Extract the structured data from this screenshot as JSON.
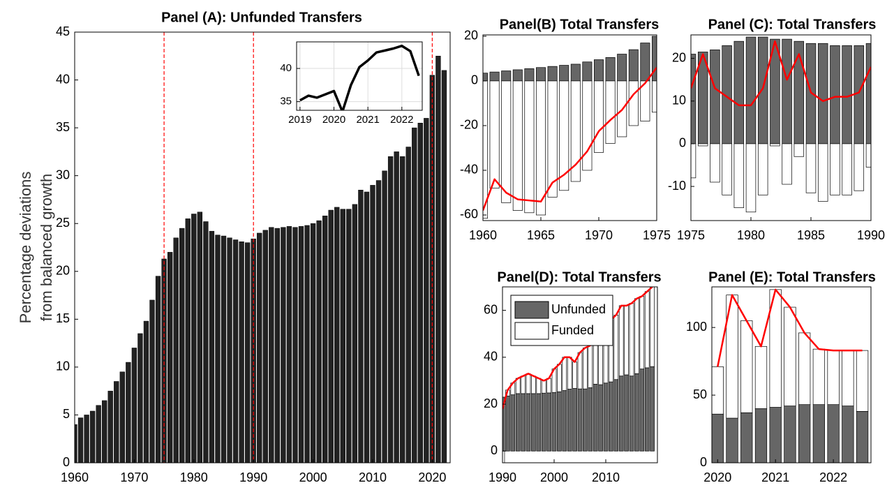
{
  "chart_data": [
    {
      "type": "bar",
      "title": "Panel (A): Unfunded Transfers",
      "ylabel": [
        "Percentage deviations",
        "from balanced growth"
      ],
      "x": [
        1960,
        1961,
        1962,
        1963,
        1964,
        1965,
        1966,
        1967,
        1968,
        1969,
        1970,
        1971,
        1972,
        1973,
        1974,
        1975,
        1976,
        1977,
        1978,
        1979,
        1980,
        1981,
        1982,
        1983,
        1984,
        1985,
        1986,
        1987,
        1988,
        1989,
        1990,
        1991,
        1992,
        1993,
        1994,
        1995,
        1996,
        1997,
        1998,
        1999,
        2000,
        2001,
        2002,
        2003,
        2004,
        2005,
        2006,
        2007,
        2008,
        2009,
        2010,
        2011,
        2012,
        2013,
        2014,
        2015,
        2016,
        2017,
        2018,
        2019,
        2020,
        2021,
        2022
      ],
      "values": [
        4,
        4.7,
        5,
        5.4,
        6,
        6.5,
        7.5,
        8.5,
        9.5,
        10.5,
        12,
        13.5,
        14.8,
        17,
        19.5,
        21.3,
        22,
        23.5,
        24.5,
        25.5,
        26,
        26.2,
        25.2,
        24.2,
        23.8,
        23.7,
        23.5,
        23.3,
        23.1,
        23,
        23.4,
        24,
        24.3,
        24.6,
        24.5,
        24.6,
        24.7,
        24.6,
        24.7,
        24.8,
        25,
        25.3,
        25.8,
        26.4,
        26.7,
        26.5,
        26.5,
        27,
        28.5,
        28.3,
        29,
        29.5,
        30.5,
        32,
        32.5,
        32,
        33,
        35,
        35.5,
        36,
        40.5,
        42.5,
        41
      ],
      "color": "#222222",
      "vlines": [
        1975,
        1990,
        2020
      ],
      "vline_color": "#ff0000",
      "xlim": [
        1960,
        2023
      ],
      "xticks": [
        1960,
        1970,
        1980,
        1990,
        2000,
        2010,
        2020
      ],
      "ylim": [
        0,
        45
      ],
      "yticks": [
        0,
        5,
        10,
        15,
        20,
        25,
        30,
        35,
        40,
        45
      ]
    },
    {
      "type": "line",
      "x": [
        2019,
        2019.25,
        2019.5,
        2019.75,
        2020,
        2020.25,
        2020.5,
        2020.75,
        2021,
        2021.25,
        2021.5,
        2021.75,
        2022,
        2022.25,
        2022.5
      ],
      "series": [
        {
          "color": "#000000",
          "values": [
            35.2,
            35.9,
            35.6,
            36.1,
            36.6,
            33.5,
            37.5,
            40.2,
            41.2,
            42.4,
            42.7,
            43.0,
            43.4,
            42.6,
            38.9
          ]
        }
      ],
      "grid": true,
      "xlim": [
        2018.9,
        2022.6
      ],
      "xticks": [
        2019,
        2020,
        2021,
        2022
      ],
      "ylim": [
        33.7,
        44
      ],
      "yticks": [
        35,
        40
      ]
    },
    {
      "type": "stacked_bar",
      "title": "Panel(B) Total Transfers",
      "x": [
        1960,
        1961,
        1962,
        1963,
        1964,
        1965,
        1966,
        1967,
        1968,
        1969,
        1970,
        1971,
        1972,
        1973,
        1974,
        1975
      ],
      "series": [
        {
          "color": "#666666",
          "kind": "bar",
          "values": [
            3.5,
            4,
            4.5,
            5,
            5.5,
            6,
            6.5,
            7,
            7.5,
            8.5,
            9.5,
            10.5,
            12,
            14,
            17,
            20
          ]
        },
        {
          "color": "#ffffff",
          "kind": "bar",
          "values": [
            -61.5,
            -48,
            -54.5,
            -58,
            -59,
            -60,
            -52,
            -49,
            -45,
            -40,
            -32,
            -28,
            -25,
            -20,
            -18,
            -14
          ]
        },
        {
          "color": "#ff0000",
          "kind": "line",
          "values": [
            -58,
            -44,
            -50,
            -53,
            -53.5,
            -54,
            -45.5,
            -42,
            -37.5,
            -31.5,
            -22.5,
            -17.5,
            -13,
            -6,
            -1,
            6
          ]
        }
      ],
      "xlim": [
        1960,
        1975
      ],
      "xticks": [
        1960,
        1965,
        1970,
        1975
      ],
      "ylim": [
        -62.5,
        20.6
      ],
      "yticks": [
        -60,
        -40,
        -20,
        0,
        20
      ]
    },
    {
      "type": "stacked_bar",
      "title": "Panel (C): Total Transfers",
      "x": [
        1975,
        1976,
        1977,
        1978,
        1979,
        1980,
        1981,
        1982,
        1983,
        1984,
        1985,
        1986,
        1987,
        1988,
        1989,
        1990
      ],
      "series": [
        {
          "color": "#666666",
          "kind": "bar",
          "values": [
            21,
            21.5,
            22,
            23,
            24,
            25,
            25,
            24.5,
            24.5,
            24,
            23.5,
            23.5,
            23,
            23,
            23,
            23.5
          ]
        },
        {
          "color": "#ffffff",
          "kind": "bar",
          "values": [
            -8,
            -0.5,
            -9,
            -12,
            -15,
            -16,
            -12,
            -0.5,
            -9.5,
            -3,
            -11.5,
            -13.5,
            -12,
            -12,
            -11,
            -5.5
          ]
        },
        {
          "color": "#ff0000",
          "kind": "line",
          "values": [
            13,
            21,
            13,
            11,
            9,
            9,
            13,
            24,
            15,
            21,
            12,
            10,
            11,
            11,
            12,
            18
          ]
        }
      ],
      "xlim": [
        1975,
        1990
      ],
      "xticks": [
        1975,
        1980,
        1985,
        1990
      ],
      "ylim": [
        -18,
        25.5
      ],
      "yticks": [
        -10,
        0,
        10,
        20
      ]
    },
    {
      "type": "stacked_bar",
      "title": "Panel(D): Total Transfers",
      "legend": "northwest",
      "x": [
        1990,
        1991,
        1992,
        1993,
        1994,
        1995,
        1996,
        1997,
        1998,
        1999,
        2000,
        2001,
        2002,
        2003,
        2004,
        2005,
        2006,
        2007,
        2008,
        2009,
        2010,
        2011,
        2012,
        2013,
        2014,
        2015,
        2016,
        2017,
        2018,
        2019
      ],
      "series": [
        {
          "name": "Unfunded",
          "color": "#666666",
          "kind": "bar",
          "values": [
            23,
            23.5,
            24,
            24.5,
            24.5,
            24.5,
            24.5,
            24.5,
            24.7,
            24.8,
            25,
            25.3,
            25.8,
            26.4,
            26.7,
            26.5,
            26.5,
            27,
            28.5,
            28.3,
            29,
            29.5,
            30.5,
            32,
            32.5,
            32,
            33,
            35,
            35.5,
            36
          ]
        },
        {
          "name": "Funded",
          "color": "#ffffff",
          "kind": "bar",
          "values": [
            -5,
            2.5,
            5,
            6.5,
            7.5,
            8.5,
            7.5,
            6.5,
            5.3,
            6.2,
            10,
            11.7,
            14.2,
            13.6,
            11.3,
            15.5,
            17.5,
            18,
            26.5,
            28.7,
            27,
            26.5,
            27.5,
            30,
            29.5,
            31,
            32,
            31,
            32.5,
            34
          ]
        },
        {
          "color": "#ff0000",
          "kind": "line",
          "values": [
            18,
            26,
            29,
            31,
            32,
            33,
            32,
            31,
            30,
            31,
            35,
            37,
            40,
            40,
            38,
            42,
            44,
            45,
            55,
            57,
            56,
            56,
            58,
            62,
            62,
            63,
            65,
            66,
            68,
            70
          ]
        }
      ],
      "xlim": [
        1990,
        2020
      ],
      "xticks": [
        1990,
        2000,
        2010
      ],
      "ylim": [
        -5,
        70
      ],
      "yticks": [
        0,
        20,
        40,
        60
      ]
    },
    {
      "type": "stacked_bar",
      "title": "Panel (E): Total Transfers",
      "x": [
        2020,
        2020.25,
        2020.5,
        2020.75,
        2021,
        2021.25,
        2021.5,
        2021.75,
        2022,
        2022.25,
        2022.5
      ],
      "series": [
        {
          "color": "#666666",
          "kind": "bar",
          "values": [
            36,
            33,
            37,
            40,
            41,
            42,
            43,
            43,
            43,
            42,
            38
          ]
        },
        {
          "color": "#ffffff",
          "kind": "bar",
          "values": [
            35,
            91,
            68,
            46,
            87,
            73,
            53,
            41,
            40,
            41,
            45
          ]
        },
        {
          "color": "#ff0000",
          "kind": "line",
          "values": [
            71,
            124,
            105,
            86,
            128,
            115,
            96,
            84,
            83,
            83,
            83
          ]
        }
      ],
      "xlim": [
        2019.9,
        2022.65
      ],
      "xticks": [
        2020,
        2021,
        2022
      ],
      "ylim": [
        0,
        130
      ],
      "yticks": [
        0,
        50,
        100
      ]
    }
  ]
}
